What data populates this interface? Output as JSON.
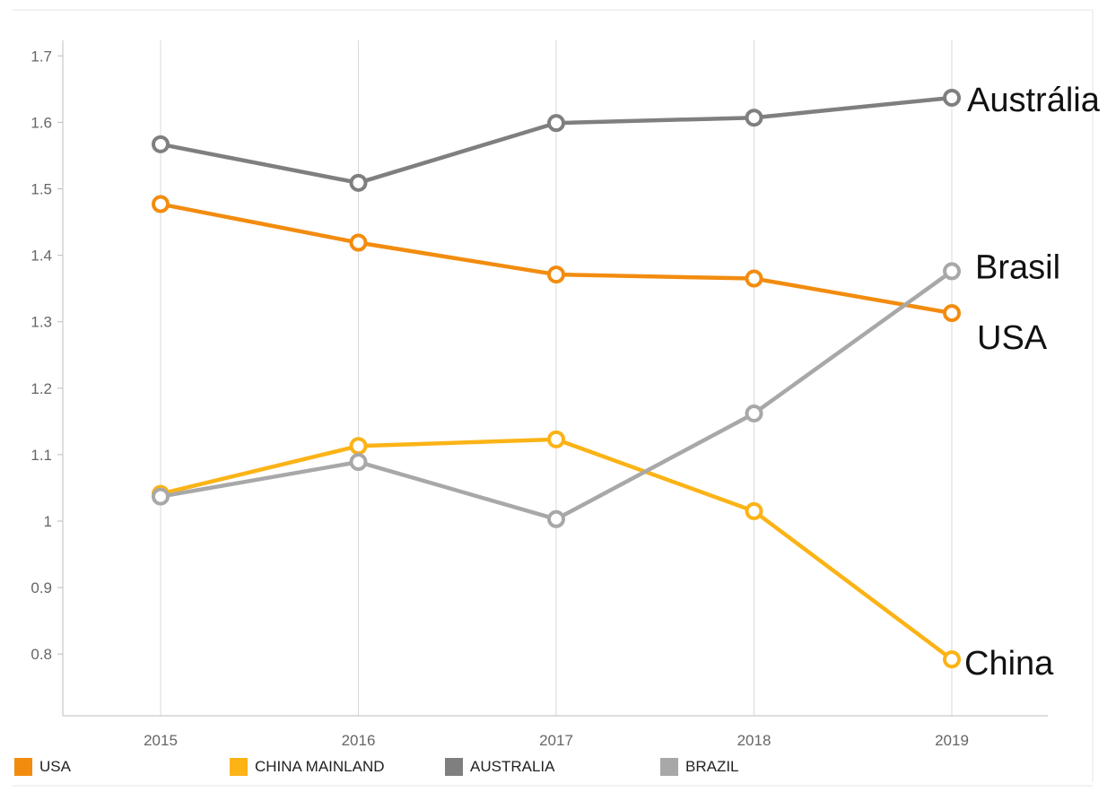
{
  "chart_data": {
    "type": "line",
    "categories": [
      "2015",
      "2016",
      "2017",
      "2018",
      "2019"
    ],
    "yticks": [
      "0.8",
      "0.9",
      "1",
      "1.1",
      "1.2",
      "1.3",
      "1.4",
      "1.5",
      "1.6",
      "1.7"
    ],
    "ylim": [
      0.7,
      1.72
    ],
    "grid": "vertical",
    "legend_position": "bottom",
    "series": [
      {
        "name": "USA",
        "color": "#f28c0f",
        "values": [
          1.477,
          1.419,
          1.371,
          1.365,
          1.313
        ]
      },
      {
        "name": "CHINA MAINLAND",
        "color": "#fbb316",
        "values": [
          1.041,
          1.113,
          1.123,
          1.015,
          0.792
        ]
      },
      {
        "name": "AUSTRALIA",
        "color": "#7f7f7f",
        "values": [
          1.567,
          1.509,
          1.599,
          1.607,
          1.637
        ]
      },
      {
        "name": "BRAZIL",
        "color": "#a8a8a8",
        "values": [
          1.037,
          1.089,
          1.003,
          1.162,
          1.376
        ]
      }
    ],
    "annotations": [
      {
        "text": "Austrália",
        "series": 2
      },
      {
        "text": "Brasil",
        "series": 3
      },
      {
        "text": "USA",
        "series": 0
      },
      {
        "text": "China",
        "series": 1
      }
    ]
  }
}
